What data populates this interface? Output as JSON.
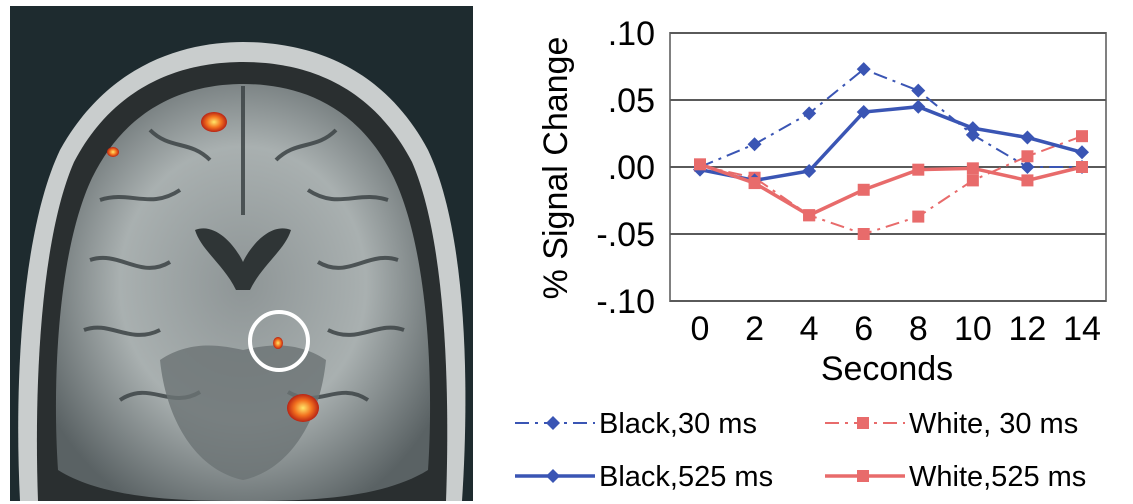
{
  "chart_data": {
    "type": "line",
    "title": "",
    "xlabel": "Seconds",
    "ylabel": "% Signal Change",
    "x": [
      0,
      2,
      4,
      6,
      8,
      10,
      12,
      14
    ],
    "x_tick_labels": [
      "0",
      "2",
      "4",
      "6",
      "8",
      "10",
      "12",
      "14"
    ],
    "xlim": [
      0,
      14
    ],
    "ylim": [
      -0.1,
      0.1
    ],
    "y_ticks": [
      0.1,
      0.05,
      0.0,
      -0.05,
      -0.1
    ],
    "y_tick_labels": [
      ".10",
      ".05",
      ".00",
      "-.05",
      "-.10"
    ],
    "grid": "horizontal",
    "legend_position": "bottom",
    "series": [
      {
        "name": "Black,30 ms",
        "values": [
          0.0,
          0.017,
          0.04,
          0.073,
          0.057,
          0.024,
          0.0,
          0.0
        ],
        "color": "#3a55b4",
        "line_style": "dashdot",
        "marker": "diamond"
      },
      {
        "name": "White, 30 ms",
        "values": [
          0.001,
          -0.008,
          -0.036,
          -0.05,
          -0.037,
          -0.01,
          0.008,
          0.023
        ],
        "color": "#e86b6b",
        "line_style": "dashdot",
        "marker": "square"
      },
      {
        "name": "Black,525 ms",
        "values": [
          -0.002,
          -0.01,
          -0.003,
          0.041,
          0.045,
          0.029,
          0.022,
          0.011
        ],
        "color": "#3a55b4",
        "line_style": "solid",
        "marker": "diamond"
      },
      {
        "name": "White,525 ms",
        "values": [
          0.002,
          -0.012,
          -0.036,
          -0.017,
          -0.002,
          -0.001,
          -0.01,
          0.0
        ],
        "color": "#e86b6b",
        "line_style": "solid",
        "marker": "square"
      }
    ]
  },
  "brain_image": {
    "background_color": "#1e2b2f",
    "highlight_color": "#ffffff",
    "activation_color": "#e8451e"
  }
}
